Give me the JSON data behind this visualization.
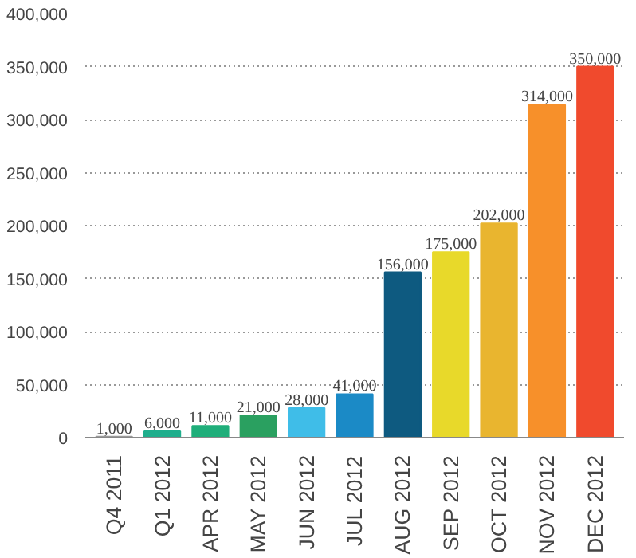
{
  "chart_data": {
    "type": "bar",
    "categories": [
      "Q4 2011",
      "Q1 2012",
      "APR 2012",
      "MAY 2012",
      "JUN 2012",
      "JUL 2012",
      "AUG 2012",
      "SEP 2012",
      "OCT 2012",
      "NOV 2012",
      "DEC 2012"
    ],
    "values": [
      1000,
      6000,
      11000,
      21000,
      28000,
      41000,
      156000,
      175000,
      202000,
      314000,
      350000
    ],
    "colors": [
      "#9a9a9a",
      "#1fae8c",
      "#1fae7a",
      "#2aa060",
      "#3fbde8",
      "#1b8ac6",
      "#0e5a80",
      "#e8d92a",
      "#e9b52f",
      "#f7902a",
      "#f04a2d"
    ],
    "value_labels": [
      "1,000",
      "6,000",
      "11,000",
      "21,000",
      "28,000",
      "41,000",
      "156,000",
      "175,000",
      "202,000",
      "314,000",
      "350,000"
    ],
    "ylim": [
      0,
      400000
    ],
    "yticks": [
      {
        "value": 0,
        "label": "0"
      },
      {
        "value": 50000,
        "label": "50,000"
      },
      {
        "value": 100000,
        "label": "100,000"
      },
      {
        "value": 150000,
        "label": "150,000"
      },
      {
        "value": 200000,
        "label": "200,000"
      },
      {
        "value": 250000,
        "label": "250,000"
      },
      {
        "value": 300000,
        "label": "300,000"
      },
      {
        "value": 350000,
        "label": "350,000"
      },
      {
        "value": 400000,
        "label": "400,000"
      }
    ],
    "grid": "y"
  }
}
